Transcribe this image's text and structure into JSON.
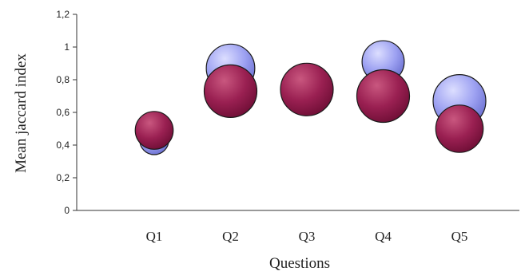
{
  "chart_data": {
    "type": "bubble",
    "title": "",
    "xlabel": "Questions",
    "ylabel": "Mean jaccard index",
    "ylim": [
      0,
      1.2
    ],
    "yticks": [
      "0",
      "0,2",
      "0,4",
      "0,6",
      "0,8",
      "1",
      "1,2"
    ],
    "categories": [
      "Q1",
      "Q2",
      "Q3",
      "Q4",
      "Q5"
    ],
    "grid": false,
    "legend": "none",
    "series": [
      {
        "color": "#8e92ee",
        "values": [
          0.43,
          0.87,
          0.74,
          0.91,
          0.67
        ],
        "sizes": [
          0.55,
          0.92,
          0.9,
          0.8,
          1.0
        ]
      },
      {
        "color": "#9a2052",
        "values": [
          0.49,
          0.73,
          0.74,
          0.7,
          0.5
        ],
        "sizes": [
          0.72,
          1.0,
          1.0,
          1.0,
          0.9
        ]
      }
    ]
  }
}
